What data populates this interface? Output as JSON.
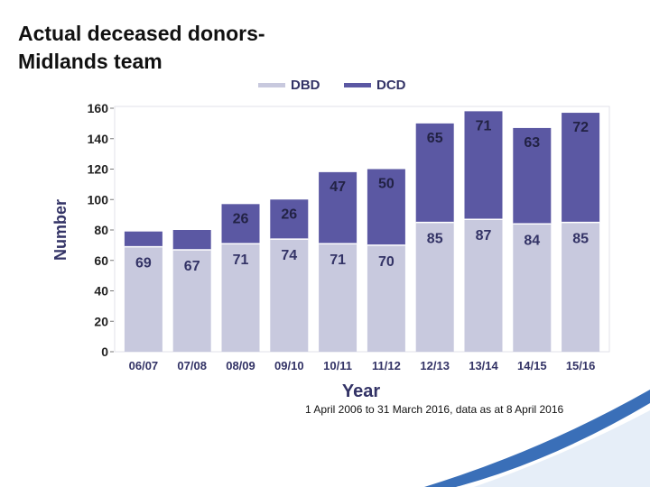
{
  "title_line1": "Actual deceased donors-",
  "title_line2": "Midlands team",
  "footnote": "1 April 2006 to 31 March 2016, data as at 8 April 2016",
  "chart_data": {
    "type": "bar",
    "stacked": true,
    "categories": [
      "06/07",
      "07/08",
      "08/09",
      "09/10",
      "10/11",
      "11/12",
      "12/13",
      "13/14",
      "14/15",
      "15/16"
    ],
    "series": [
      {
        "name": "DBD",
        "color": "#c8c9de",
        "values": [
          69,
          67,
          71,
          74,
          71,
          70,
          85,
          87,
          84,
          85
        ],
        "labels": [
          "69",
          "67",
          "71",
          "74",
          "71",
          "70",
          "85",
          "87",
          "84",
          "85"
        ]
      },
      {
        "name": "DCD",
        "color": "#5b58a3",
        "values": [
          10,
          13,
          26,
          26,
          47,
          50,
          65,
          71,
          63,
          72
        ],
        "labels": [
          "",
          "",
          "26",
          "26",
          "47",
          "50",
          "65",
          "71",
          "63",
          "72"
        ]
      }
    ],
    "ylabel": "Number",
    "xlabel": "Year",
    "ylim": [
      0,
      160
    ],
    "yticks": [
      0,
      20,
      40,
      60,
      80,
      100,
      120,
      140,
      160
    ],
    "legend_position": "top"
  }
}
